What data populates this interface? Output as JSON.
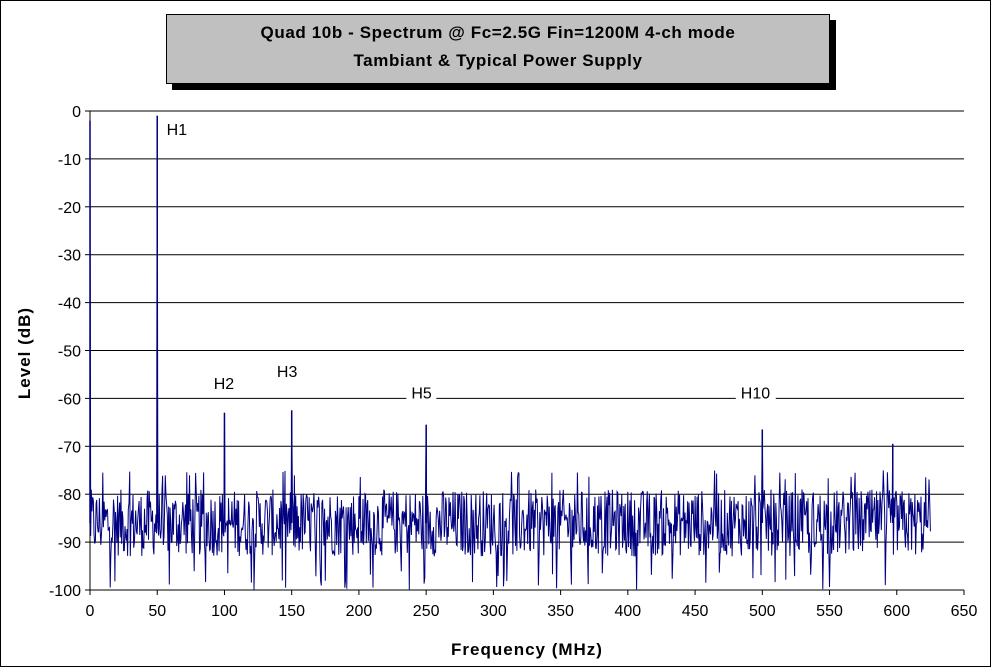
{
  "chart_data": {
    "type": "line",
    "title": "Quad 10b - Spectrum @ Fc=2.5G Fin=1200M 4-ch mode",
    "subtitle": "Tambiant & Typical Power Supply",
    "xlabel": "Frequency (MHz)",
    "ylabel": "Level (dB)",
    "xlim": [
      0,
      650
    ],
    "ylim": [
      -100,
      0
    ],
    "x_ticks": [
      0,
      50,
      100,
      150,
      200,
      250,
      300,
      350,
      400,
      450,
      500,
      550,
      600,
      650
    ],
    "y_ticks": [
      0,
      -10,
      -20,
      -30,
      -40,
      -50,
      -60,
      -70,
      -80,
      -90,
      -100
    ],
    "grid": "horizontal",
    "series_color": "#000080",
    "noise_floor": {
      "x_range": [
        0,
        625
      ],
      "typical_level": -86,
      "upper": -77,
      "lower": -100
    },
    "peaks": [
      {
        "x": 0,
        "y": -2
      },
      {
        "x": 50,
        "y": -1
      },
      {
        "x": 100,
        "y": -63
      },
      {
        "x": 150,
        "y": -62.5
      },
      {
        "x": 250,
        "y": -65.5
      },
      {
        "x": 500,
        "y": -66.5
      },
      {
        "x": 597,
        "y": -69.5
      }
    ],
    "annotations": [
      {
        "label": "H1",
        "x": 57,
        "y": -5
      },
      {
        "label": "H2",
        "x": 92,
        "y": -58
      },
      {
        "label": "H3",
        "x": 139,
        "y": -55.5
      },
      {
        "label": "H5",
        "x": 239,
        "y": -60
      },
      {
        "label": "H10",
        "x": 484,
        "y": -60
      }
    ]
  }
}
